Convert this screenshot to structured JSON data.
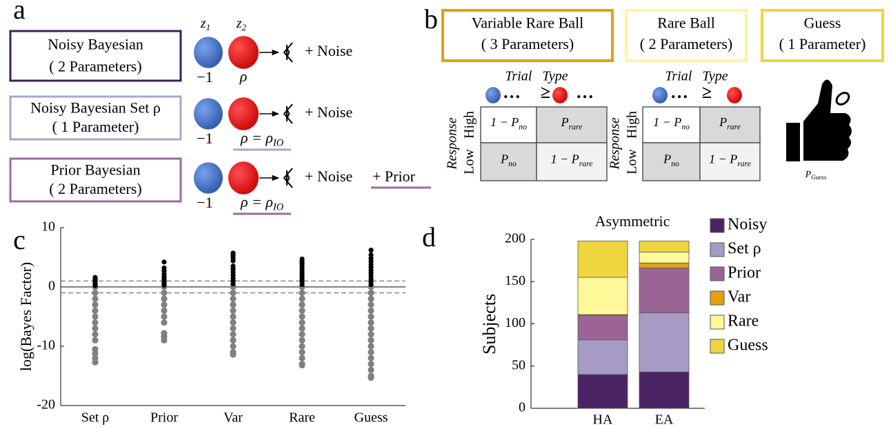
{
  "panel_labels": [
    "a",
    "b",
    "c",
    "d"
  ],
  "panel_a": {
    "models": [
      {
        "name": "Noisy Bayesian",
        "params": "( 2 Parameters)"
      },
      {
        "name": "Noisy Bayesian Set ρ",
        "params": "( 1 Parameter)"
      },
      {
        "name": "Prior Bayesian",
        "params": "( 2 Parameters)"
      }
    ],
    "z1": {
      "base": "z",
      "sub": "1"
    },
    "z2": {
      "base": "z",
      "sub": "2"
    },
    "rows": [
      {
        "left": "−1",
        "right": {
          "base": "ρ",
          "sub": ""
        },
        "effect": "+ Noise"
      },
      {
        "left": "−1",
        "right": {
          "base": "ρ = ρ",
          "sub": "IO"
        },
        "effect": "+ Noise"
      },
      {
        "left": "−1",
        "right": {
          "base": "ρ = ρ",
          "sub": "IO"
        },
        "effect": "+ Noise",
        "extra": "+ Prior"
      }
    ]
  },
  "panel_b": {
    "models": [
      {
        "name": "Variable Rare Ball",
        "params": "( 3 Parameters)"
      },
      {
        "name": "Rare Ball",
        "params": "( 2 Parameters)"
      },
      {
        "name": "Guess",
        "params": "( 1 Parameter)"
      }
    ],
    "tables": [
      {
        "column_title": "Trial Type",
        "header_marks": [
          "…",
          "≥",
          "…"
        ],
        "row_title": "Response",
        "rows": [
          "High",
          "Low"
        ],
        "cells": [
          [
            {
              "base": "1 − P",
              "sub": "no"
            },
            {
              "base": "P",
              "sub": "rare"
            }
          ],
          [
            {
              "base": "P",
              "sub": "no"
            },
            {
              "base": "1 − P",
              "sub": "rare"
            }
          ]
        ]
      },
      {
        "column_title": "Trial Type",
        "header_marks": [
          "…",
          "≥"
        ],
        "row_title": "Response",
        "rows": [
          "High",
          "Low"
        ],
        "cells": [
          [
            {
              "base": "1 − P",
              "sub": "no"
            },
            {
              "base": "P",
              "sub": "rare"
            }
          ],
          [
            {
              "base": "P",
              "sub": "no"
            },
            {
              "base": "1 − P",
              "sub": "rare"
            }
          ]
        ]
      }
    ],
    "guess_label": {
      "base": "P",
      "sub": "Guess"
    }
  },
  "chart_data": [
    {
      "type": "strip",
      "ylabel": "log(Bayes Factor)",
      "categories": [
        "Set ρ",
        "Prior",
        "Var",
        "Rare",
        "Guess"
      ],
      "ylim": [
        -20,
        10
      ],
      "yticks": [
        10,
        0,
        -10,
        -20
      ],
      "hlines": [
        {
          "value": 1,
          "dashed": true
        },
        {
          "value": 0,
          "dashed": false
        },
        {
          "value": -1,
          "dashed": true
        }
      ],
      "series": [
        {
          "color": "#000000",
          "values": [
            [
              1.6,
              1.4,
              1.2,
              1.0,
              0.8,
              0.6,
              0.4,
              0.2
            ],
            [
              4.2,
              3.2,
              2.7,
              2.2,
              1.8,
              1.5,
              1.2,
              0.9,
              0.6,
              0.3
            ],
            [
              5.7,
              5.3,
              4.9,
              4.4,
              3.5,
              3.0,
              2.5,
              2.0,
              1.5,
              1.0,
              0.5
            ],
            [
              4.7,
              4.3,
              4.0,
              3.6,
              3.2,
              2.8,
              2.4,
              2.0,
              1.6,
              1.2,
              0.8,
              0.4
            ],
            [
              6.2,
              5.4,
              4.8,
              4.3,
              3.8,
              3.3,
              2.8,
              2.3,
              1.8,
              1.3,
              0.8,
              0.4
            ]
          ]
        },
        {
          "color": "#808080",
          "values": [
            [
              0,
              -1,
              -2,
              -3,
              -4,
              -5,
              -6,
              -7,
              -8,
              -9,
              -10.5,
              -11.2,
              -12,
              -12.7
            ],
            [
              0,
              -1,
              -2,
              -3,
              -4,
              -5,
              -6,
              -7.8,
              -8.4,
              -9
            ],
            [
              0,
              -1,
              -2,
              -3,
              -4,
              -5,
              -6,
              -7,
              -8,
              -9,
              -10,
              -11,
              -11.4
            ],
            [
              0,
              -1,
              -2,
              -3,
              -4,
              -5,
              -6,
              -7,
              -8,
              -9,
              -10,
              -11,
              -12,
              -13,
              -13.2
            ],
            [
              0,
              -1,
              -2,
              -3,
              -4,
              -5,
              -6,
              -7,
              -8,
              -9,
              -10,
              -11,
              -12,
              -13,
              -14,
              -15,
              -15.3
            ]
          ]
        }
      ]
    },
    {
      "type": "stacked_bar",
      "title": "Asymmetric",
      "ylabel": "Subjects",
      "categories": [
        "HA",
        "EA"
      ],
      "ylim": [
        0,
        200
      ],
      "yticks": [
        0,
        50,
        100,
        150,
        200
      ],
      "series": [
        {
          "name": "Noisy",
          "color": "#4b2466",
          "values": [
            40,
            43
          ]
        },
        {
          "name": "Set ρ",
          "color": "#a59bc4",
          "values": [
            41,
            70
          ]
        },
        {
          "name": "Prior",
          "color": "#9a6496",
          "values": [
            29,
            53
          ]
        },
        {
          "name": "Var",
          "color": "#e0a010",
          "values": [
            1,
            6
          ]
        },
        {
          "name": "Rare",
          "color": "#fff899",
          "values": [
            44,
            13
          ]
        },
        {
          "name": "Guess",
          "color": "#f0d540",
          "values": [
            43,
            13
          ]
        }
      ]
    }
  ]
}
